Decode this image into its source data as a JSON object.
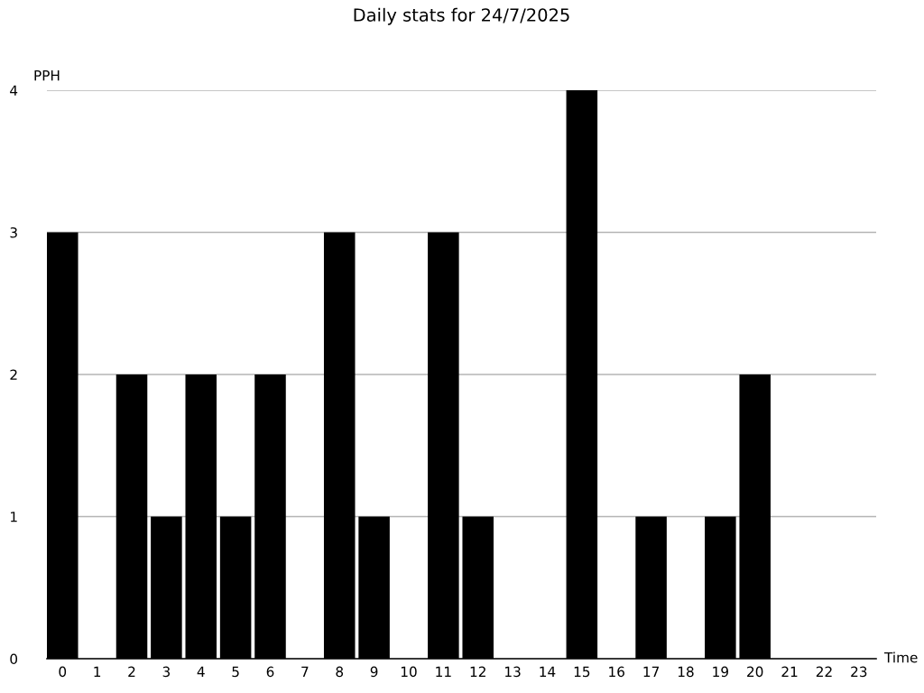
{
  "chart_data": {
    "type": "bar",
    "title": "Daily stats for 24/7/2025",
    "xlabel": "Time",
    "ylabel": "PPH",
    "categories": [
      "0",
      "1",
      "2",
      "3",
      "4",
      "5",
      "6",
      "7",
      "8",
      "9",
      "10",
      "11",
      "12",
      "13",
      "14",
      "15",
      "16",
      "17",
      "18",
      "19",
      "20",
      "21",
      "22",
      "23"
    ],
    "values": [
      3,
      0,
      2,
      1,
      2,
      1,
      2,
      0,
      3,
      1,
      0,
      3,
      1,
      0,
      0,
      4,
      0,
      1,
      0,
      1,
      2,
      0,
      0,
      0
    ],
    "color": "#000000",
    "ylim": [
      0,
      4
    ],
    "yticks": [
      0,
      1,
      2,
      3,
      4
    ],
    "grid": "y"
  }
}
